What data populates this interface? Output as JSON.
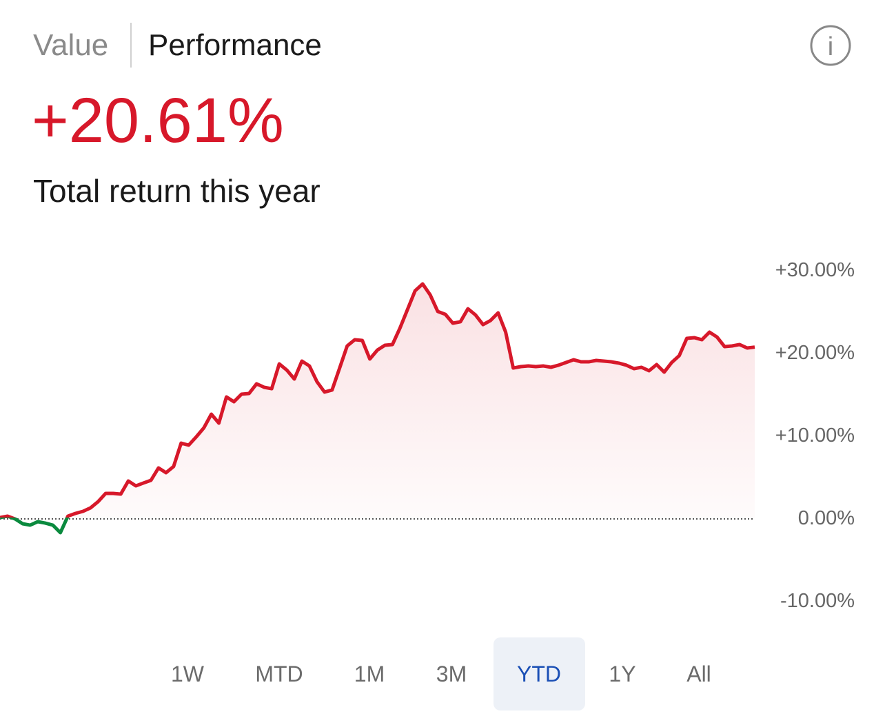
{
  "header": {
    "tabs": [
      "Value",
      "Performance"
    ],
    "active_tab": 1,
    "info_icon": "i",
    "value": "+20.61%",
    "caption": "Total return this year"
  },
  "chart_data": {
    "type": "line",
    "up_color": "#d7182a",
    "down_color": "#0a8a3e",
    "values": [
      0.0,
      0.17,
      -0.17,
      -0.75,
      -0.92,
      -0.5,
      -0.67,
      -0.92,
      -1.83,
      0.17,
      0.5,
      0.75,
      1.17,
      1.92,
      2.92,
      2.92,
      2.83,
      4.42,
      3.83,
      4.17,
      4.5,
      6.0,
      5.42,
      6.17,
      9.0,
      8.75,
      9.75,
      10.83,
      12.5,
      11.42,
      14.58,
      14.0,
      14.92,
      15.0,
      16.17,
      15.75,
      15.58,
      18.58,
      17.83,
      16.75,
      18.92,
      18.33,
      16.42,
      15.17,
      15.42,
      18.08,
      20.75,
      21.5,
      21.42,
      19.17,
      20.25,
      20.83,
      20.92,
      22.92,
      25.17,
      27.42,
      28.25,
      26.92,
      24.92,
      24.58,
      23.5,
      23.67,
      25.25,
      24.5,
      23.33,
      23.83,
      24.75,
      22.42,
      18.08,
      18.25,
      18.33,
      18.25,
      18.33,
      18.17,
      18.42,
      18.75,
      19.08,
      18.83,
      18.83,
      19.0,
      18.92,
      18.83,
      18.67,
      18.42,
      18.0,
      18.17,
      17.75,
      18.5,
      17.58,
      18.75,
      19.58,
      21.67,
      21.75,
      21.5,
      22.42,
      21.83,
      20.67,
      20.75,
      20.92,
      20.5,
      20.61
    ],
    "ylim": [
      -12.5,
      32.5
    ],
    "yticks": [
      {
        "value": 30,
        "label": "+30.00%"
      },
      {
        "value": 20,
        "label": "+20.00%"
      },
      {
        "value": 10,
        "label": "+10.00%"
      },
      {
        "value": 0,
        "label": "0.00%"
      },
      {
        "value": -10,
        "label": "-10.00%"
      }
    ]
  },
  "ranges": {
    "options": [
      "1W",
      "MTD",
      "1M",
      "3M",
      "YTD",
      "1Y",
      "All"
    ],
    "selected": 4
  }
}
